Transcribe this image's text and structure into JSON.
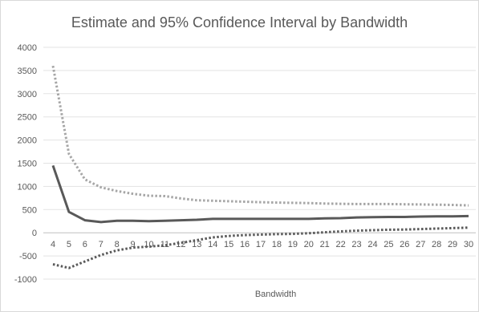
{
  "chart_data": {
    "type": "line",
    "title": "Estimate and 95% Confidence Interval by Bandwidth",
    "xlabel": "Bandwidth",
    "ylabel": "",
    "x": [
      4,
      5,
      6,
      7,
      8,
      9,
      10,
      11,
      12,
      13,
      14,
      15,
      16,
      17,
      18,
      19,
      20,
      21,
      22,
      23,
      24,
      25,
      26,
      27,
      28,
      29,
      30
    ],
    "ylim": [
      -1000,
      4000
    ],
    "yticks": [
      -1000,
      -500,
      0,
      500,
      1000,
      1500,
      2000,
      2500,
      3000,
      3500,
      4000
    ],
    "grid": true,
    "legend": "none",
    "series": [
      {
        "style": "solid",
        "color": "#595959",
        "values": [
          1450,
          450,
          270,
          230,
          260,
          260,
          250,
          260,
          270,
          280,
          300,
          300,
          300,
          300,
          300,
          300,
          300,
          310,
          315,
          330,
          335,
          340,
          340,
          350,
          355,
          355,
          360
        ]
      },
      {
        "style": "dotted",
        "color": "#a6a6a6",
        "values": [
          3600,
          1700,
          1150,
          980,
          900,
          840,
          800,
          790,
          740,
          700,
          690,
          680,
          670,
          660,
          650,
          645,
          640,
          630,
          625,
          620,
          620,
          620,
          615,
          610,
          605,
          600,
          590
        ]
      },
      {
        "style": "dotted",
        "color": "#595959",
        "values": [
          -680,
          -760,
          -620,
          -480,
          -380,
          -320,
          -300,
          -270,
          -220,
          -160,
          -100,
          -70,
          -50,
          -40,
          -30,
          -25,
          -10,
          10,
          30,
          45,
          55,
          65,
          70,
          80,
          90,
          100,
          110
        ]
      }
    ]
  }
}
